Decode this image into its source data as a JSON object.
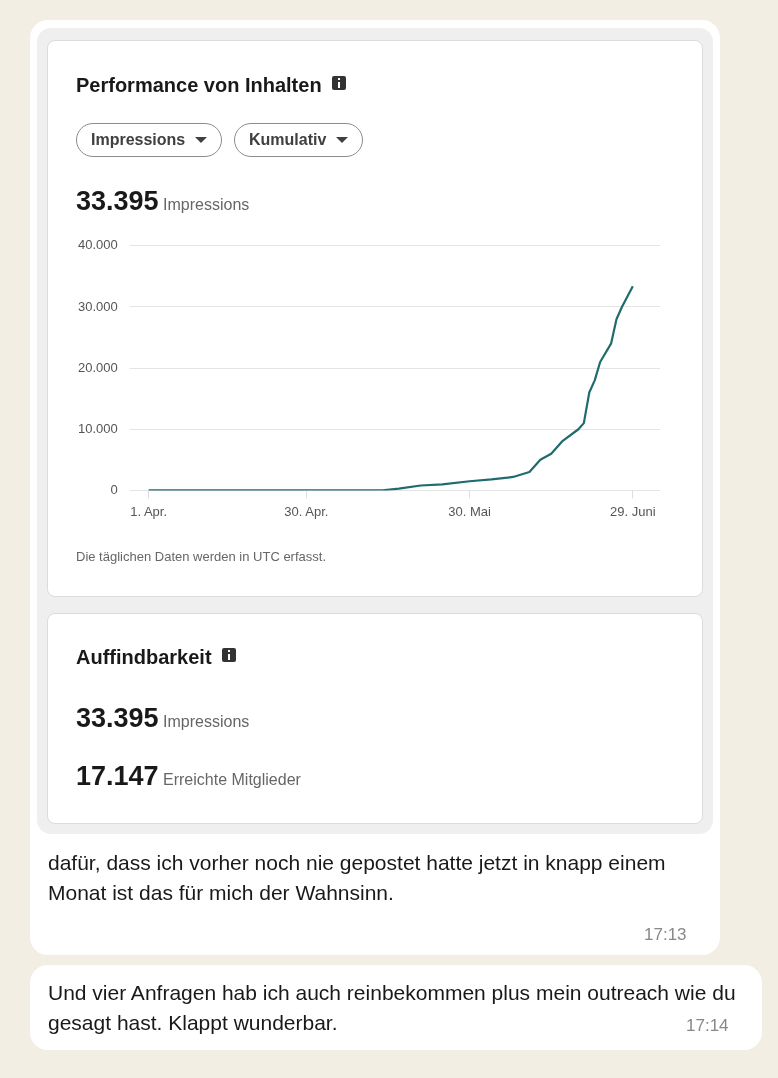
{
  "chart_data": {
    "type": "line",
    "title": "Performance von Inhalten",
    "x": [
      "--04-01",
      "--05-14",
      "--05-17",
      "--05-21",
      "--05-25",
      "--05-30",
      "--06-03",
      "--06-07",
      "--06-10",
      "--06-12",
      "--06-14",
      "--06-16",
      "--06-19",
      "--06-20",
      "--06-21",
      "--06-22",
      "--06-23",
      "--06-25",
      "--06-26",
      "--06-27",
      "--06-29"
    ],
    "values": [
      0,
      0,
      300,
      800,
      1000,
      1500,
      1800,
      2200,
      3000,
      5000,
      6000,
      8000,
      10000,
      11000,
      16000,
      18000,
      21000,
      24000,
      28000,
      30000,
      33395
    ],
    "color": "#1f6b6e",
    "xlim": [
      "--03-30",
      "--07-04"
    ],
    "xticks": [
      {
        "value": "--04-01",
        "label": "1. Apr."
      },
      {
        "value": "--04-30",
        "label": "30. Apr."
      },
      {
        "value": "--05-30",
        "label": "30. Mai"
      },
      {
        "value": "--06-29",
        "label": "29. Juni"
      }
    ],
    "ylim": [
      0,
      40000
    ],
    "yticks": [
      {
        "value": 0,
        "label": "0"
      },
      {
        "value": 10000,
        "label": "10.000"
      },
      {
        "value": 20000,
        "label": "20.000"
      },
      {
        "value": 30000,
        "label": "30.000"
      },
      {
        "value": 40000,
        "label": "40.000"
      }
    ],
    "grid": "y",
    "marker": "none",
    "annotations": [
      "Impressions",
      "Kumulativ",
      "33.395 Impressions",
      "Die täglichen Daten werden in UTC erfasst.",
      "Auffindbarkeit",
      "33.395 Impressions",
      "17.147 Erreichte Mitglieder",
      "dafür, dass ich vorher noch nie gepostet hatte jetzt in knapp einem Monat ist das für mich der Wahnsinn.",
      "17:13",
      "Und vier Anfragen hab ich auch reinbekommen plus mein outreach wie du gesagt hast. Klappt wunderbar.",
      "17:14"
    ]
  }
}
